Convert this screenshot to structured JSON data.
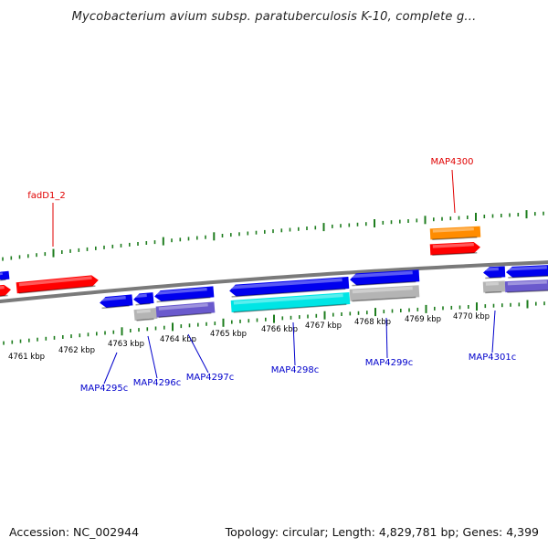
{
  "title": "Mycobacterium avium subsp. paratuberculosis K-10, complete g...",
  "footer": {
    "accession": "Accession: NC_002944",
    "topology": "Topology: circular; Length: 4,829,781 bp; Genes: 4,399"
  },
  "colors": {
    "background": "#ffffff",
    "backbone": "#7a7a7a",
    "tick": "#1e7d1e",
    "forward_label": "#e00000",
    "reverse_label": "#0000cc",
    "forward_gene": "#ff0000",
    "orange_gene": "#ff8c00",
    "reverse_gene": "#0000ee",
    "cyan_gene": "#00e5e5",
    "gray_gene": "#b4b4b4",
    "purple_gene": "#6a5acd"
  },
  "scale_labels": [
    "4761 kbp",
    "4762 kbp",
    "4763 kbp",
    "4764 kbp",
    "4765 kbp",
    "4766 kbp",
    "4767 kbp",
    "4768 kbp",
    "4769 kbp",
    "4770 kbp"
  ],
  "gene_labels": [
    {
      "id": "fadD1_2",
      "strand": "forward"
    },
    {
      "id": "MAP4300",
      "strand": "forward"
    },
    {
      "id": "MAP4295c",
      "strand": "reverse"
    },
    {
      "id": "MAP4296c",
      "strand": "reverse"
    },
    {
      "id": "MAP4297c",
      "strand": "reverse"
    },
    {
      "id": "MAP4298c",
      "strand": "reverse"
    },
    {
      "id": "MAP4299c",
      "strand": "reverse"
    },
    {
      "id": "MAP4301c",
      "strand": "reverse"
    }
  ]
}
